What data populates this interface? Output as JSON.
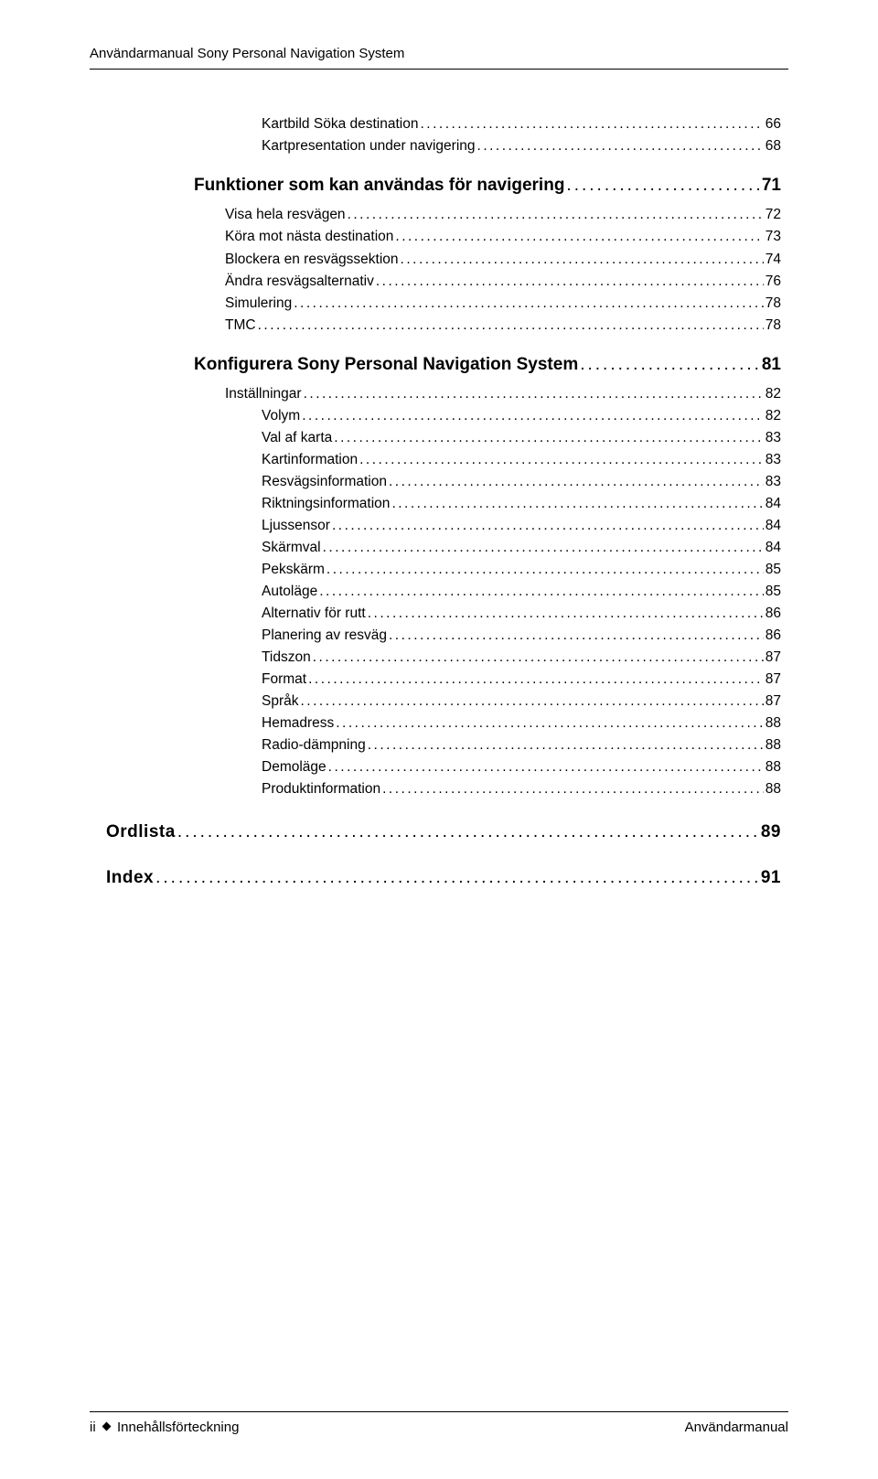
{
  "header": {
    "title": "Användarmanual Sony Personal Navigation System"
  },
  "toc": [
    {
      "level": 3,
      "label": "Kartbild Söka destination",
      "page": "66"
    },
    {
      "level": 3,
      "label": "Kartpresentation under navigering",
      "page": "68"
    },
    {
      "level": 1,
      "label": "Funktioner som kan användas för navigering",
      "page": "71"
    },
    {
      "level": 2,
      "label": "Visa hela resvägen",
      "page": "72"
    },
    {
      "level": 2,
      "label": "Köra mot nästa destination",
      "page": "73"
    },
    {
      "level": 2,
      "label": "Blockera en resvägssektion",
      "page": "74"
    },
    {
      "level": 2,
      "label": "Ändra resvägsalternativ",
      "page": "76"
    },
    {
      "level": 2,
      "label": "Simulering",
      "page": "78"
    },
    {
      "level": 2,
      "label": "TMC",
      "page": "78"
    },
    {
      "level": 1,
      "label": "Konfigurera Sony Personal Navigation System",
      "page": "81"
    },
    {
      "level": 2,
      "label": "Inställningar",
      "page": "82"
    },
    {
      "level": 3,
      "label": "Volym",
      "page": "82"
    },
    {
      "level": 3,
      "label": "Val af karta",
      "page": "83"
    },
    {
      "level": 3,
      "label": "Kartinformation",
      "page": "83"
    },
    {
      "level": 3,
      "label": "Resvägsinformation",
      "page": "83"
    },
    {
      "level": 3,
      "label": "Riktningsinformation",
      "page": "84"
    },
    {
      "level": 3,
      "label": "Ljussensor",
      "page": "84"
    },
    {
      "level": 3,
      "label": "Skärmval",
      "page": "84"
    },
    {
      "level": 3,
      "label": "Pekskärm",
      "page": "85"
    },
    {
      "level": 3,
      "label": "Autoläge",
      "page": "85"
    },
    {
      "level": 3,
      "label": "Alternativ för rutt",
      "page": "86"
    },
    {
      "level": 3,
      "label": "Planering av resväg",
      "page": "86"
    },
    {
      "level": 3,
      "label": "Tidszon",
      "page": "87"
    },
    {
      "level": 3,
      "label": "Format",
      "page": "87"
    },
    {
      "level": 3,
      "label": "Språk",
      "page": "87"
    },
    {
      "level": 3,
      "label": "Hemadress",
      "page": "88"
    },
    {
      "level": 3,
      "label": "Radio-dämpning",
      "page": "88"
    },
    {
      "level": 3,
      "label": "Demoläge",
      "page": "88"
    },
    {
      "level": 3,
      "label": "Produktinformation",
      "page": "88"
    }
  ],
  "toc_bottom": [
    {
      "level": 1,
      "label": "Ordlista",
      "page": "89"
    },
    {
      "level": 1,
      "label": "Index",
      "page": "91"
    }
  ],
  "footer": {
    "left_prefix": "ii",
    "left_text": "Innehållsförteckning",
    "right_text": "Användarmanual"
  }
}
